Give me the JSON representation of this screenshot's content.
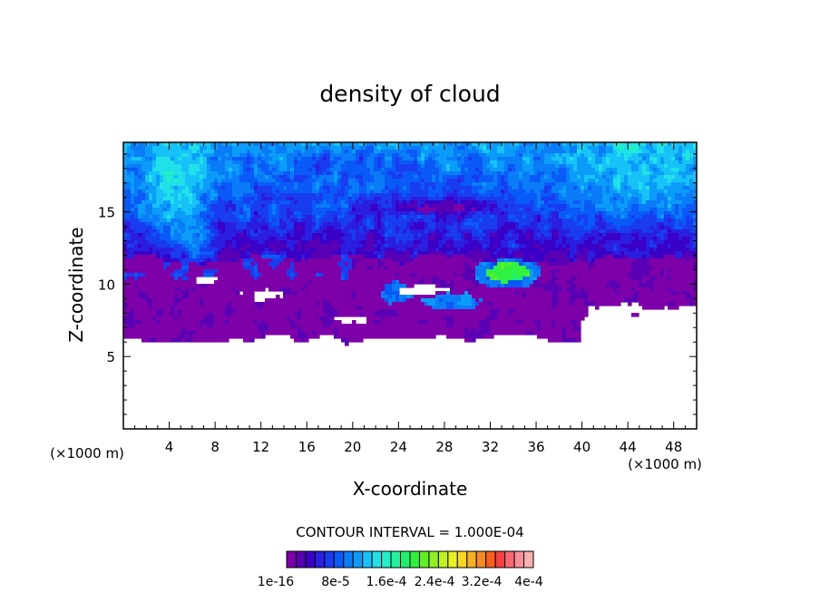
{
  "chart_data": {
    "type": "heatmap",
    "title": "density of cloud",
    "xlabel": "X-coordinate",
    "ylabel": "Z-coordinate",
    "x_unit_label": "(×1000 m)",
    "z_unit_label": "(×1000 m)",
    "xlim": [
      0,
      50
    ],
    "ylim": [
      0,
      19.8
    ],
    "x_ticks": [
      4,
      8,
      12,
      16,
      20,
      24,
      28,
      32,
      36,
      40,
      44,
      48
    ],
    "y_ticks": [
      5,
      10,
      15
    ],
    "contour_interval_text": "CONTOUR INTERVAL = 1.000E-04",
    "colorbar": {
      "colors": [
        "#7d00a8",
        "#5a00b4",
        "#3a00c8",
        "#2a1ee0",
        "#1a3cf0",
        "#0a5af8",
        "#0a7cf8",
        "#0a9cf8",
        "#16c2f8",
        "#20e0e8",
        "#20f0c8",
        "#20f0a0",
        "#20f070",
        "#30f040",
        "#60f020",
        "#90f020",
        "#c0f020",
        "#e8f020",
        "#f8d820",
        "#f8b020",
        "#f88820",
        "#f86020",
        "#f84040",
        "#f86870",
        "#f89098",
        "#f8b0b0"
      ],
      "labels": [
        "1e-16",
        "8e-5",
        "1.6e-4",
        "2.4e-4",
        "3.2e-4",
        "4e-4"
      ]
    },
    "cloud_bands": [
      {
        "name": "upper",
        "z_range": [
          12,
          19.8
        ],
        "levels": [
          2,
          12
        ]
      },
      {
        "name": "purple-mid",
        "z_range": [
          6.3,
          12
        ],
        "levels": [
          0,
          1
        ]
      },
      {
        "name": "core",
        "x_range": [
          31,
          36
        ],
        "z_range": [
          9.5,
          11.5
        ],
        "levels": [
          12,
          14
        ]
      }
    ]
  }
}
